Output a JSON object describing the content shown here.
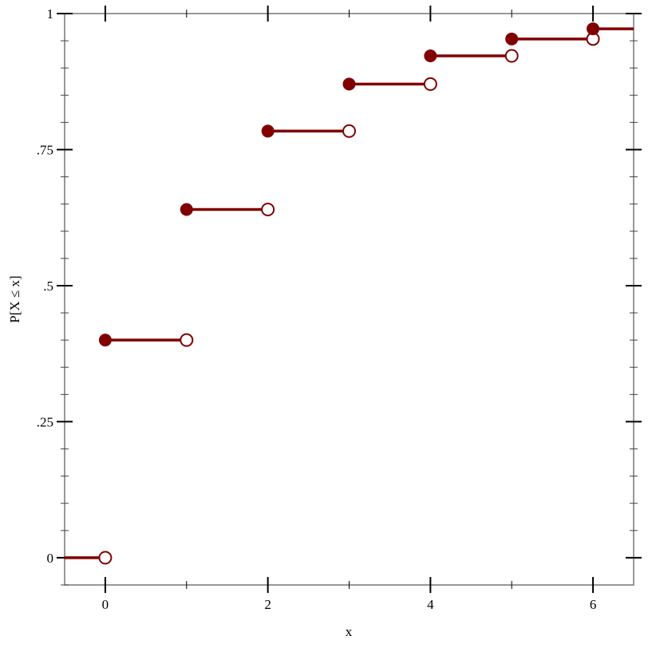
{
  "chart_data": {
    "type": "line",
    "subtype": "step-cdf",
    "title": "",
    "xlabel": "x",
    "ylabel": "P[X ≤ x]",
    "xlim": [
      -0.5,
      6.5
    ],
    "ylim": [
      -0.05,
      1
    ],
    "x_ticks": [
      0,
      2,
      4,
      6
    ],
    "x_tick_labels": [
      "0",
      "2",
      "4",
      "6"
    ],
    "x_minor_ticks": [
      1,
      3,
      5
    ],
    "y_ticks": [
      0,
      0.25,
      0.5,
      0.75,
      1
    ],
    "y_tick_labels": [
      "0",
      ".25",
      ".5",
      ".75",
      "1"
    ],
    "y_minor_step": 0.05,
    "grid": false,
    "color": "#800000",
    "steps": [
      {
        "x_start": -0.5,
        "x_end": 0,
        "y": 0,
        "closed_start": false,
        "open_end": true
      },
      {
        "x_start": 0,
        "x_end": 1,
        "y": 0.4,
        "closed_start": true,
        "open_end": true
      },
      {
        "x_start": 1,
        "x_end": 2,
        "y": 0.64,
        "closed_start": true,
        "open_end": true
      },
      {
        "x_start": 2,
        "x_end": 3,
        "y": 0.784,
        "closed_start": true,
        "open_end": true
      },
      {
        "x_start": 3,
        "x_end": 4,
        "y": 0.8704,
        "closed_start": true,
        "open_end": true
      },
      {
        "x_start": 4,
        "x_end": 5,
        "y": 0.92224,
        "closed_start": true,
        "open_end": true
      },
      {
        "x_start": 5,
        "x_end": 6,
        "y": 0.953344,
        "closed_start": true,
        "open_end": true
      },
      {
        "x_start": 6,
        "x_end": 6.5,
        "y": 0.9720064,
        "closed_start": true,
        "open_end": false
      }
    ]
  }
}
